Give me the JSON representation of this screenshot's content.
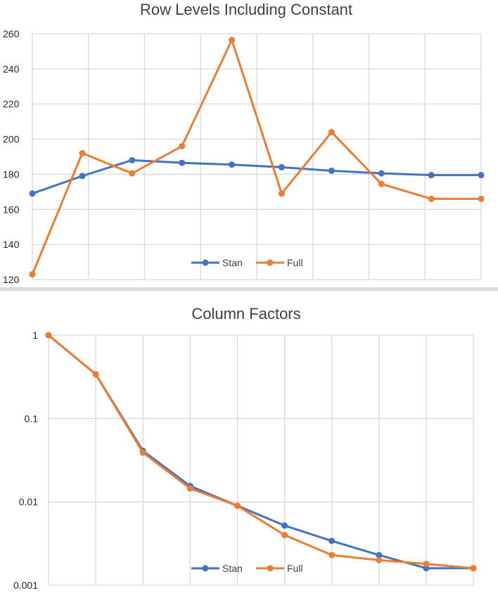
{
  "chart_data": [
    {
      "type": "line",
      "title": "Row Levels Including Constant",
      "xlabel": "",
      "ylabel": "",
      "ylim": [
        120,
        260
      ],
      "yticks": [
        "120",
        "140",
        "160",
        "180",
        "200",
        "220",
        "240",
        "260"
      ],
      "x": [
        1,
        2,
        3,
        4,
        5,
        6,
        7,
        8,
        9,
        10
      ],
      "series": [
        {
          "name": "Stan",
          "color": "#4472C4",
          "values": [
            169,
            179,
            188,
            186.5,
            185.5,
            184,
            182,
            180.5,
            179.5,
            179.5
          ]
        },
        {
          "name": "Full",
          "color": "#ED7D31",
          "values": [
            123,
            192,
            180.5,
            196,
            256.5,
            169,
            204,
            174.5,
            166,
            166
          ]
        }
      ],
      "grid": true,
      "legend": "bottom-center"
    },
    {
      "type": "line",
      "title": "Column Factors",
      "xlabel": "",
      "ylabel": "",
      "yscale": "log",
      "ylim": [
        0.001,
        1
      ],
      "yticks": [
        "0.001",
        "0.01",
        "0.1",
        "1"
      ],
      "x": [
        1,
        2,
        3,
        4,
        5,
        6,
        7,
        8,
        9,
        10
      ],
      "series": [
        {
          "name": "Stan",
          "color": "#4472C4",
          "values": [
            1,
            0.34,
            0.041,
            0.0155,
            0.009,
            0.0052,
            0.0034,
            0.0023,
            0.0016,
            0.0016
          ]
        },
        {
          "name": "Full",
          "color": "#ED7D31",
          "values": [
            1,
            0.34,
            0.039,
            0.0145,
            0.009,
            0.004,
            0.0023,
            0.002,
            0.0018,
            0.0016
          ]
        }
      ],
      "grid": true,
      "legend": "bottom-center"
    }
  ]
}
